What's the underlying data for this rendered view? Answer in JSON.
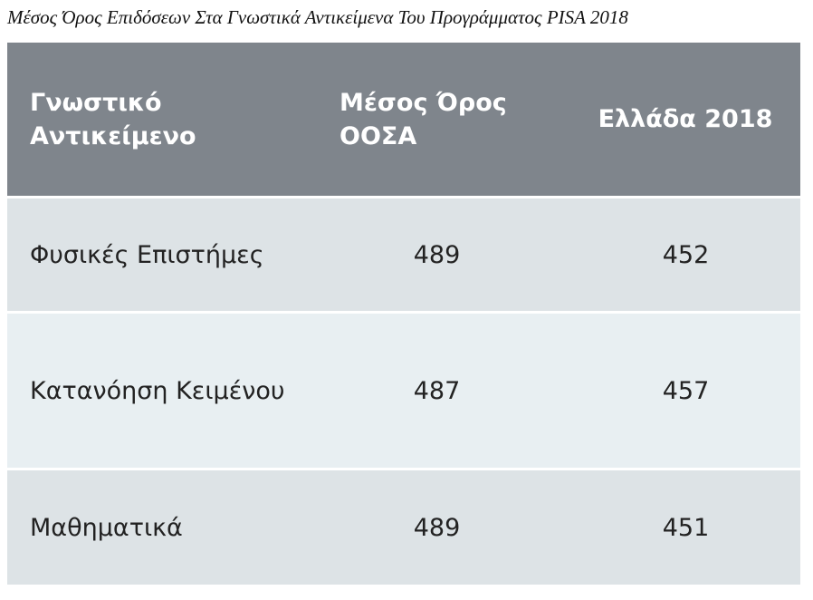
{
  "caption": "Μέσος Όρος Επιδόσεων Στα Γνωστικά Αντικείμενα Του Προγράμματος PISA 2018",
  "table": {
    "headers": [
      "Γνωστικό Αντικείμενο",
      "Μέσος Όρος ΟΟΣΑ",
      "Ελλάδα 2018"
    ],
    "rows": [
      {
        "subject": "Φυσικές Επιστήμες",
        "oecd_mean": "489",
        "greece_2018": "452"
      },
      {
        "subject": "Κατανόηση Κειμένου",
        "oecd_mean": "487",
        "greece_2018": "457"
      },
      {
        "subject": "Μαθηματικά",
        "oecd_mean": "489",
        "greece_2018": "451"
      }
    ]
  },
  "colors": {
    "header_bg": "#7f858c",
    "row_bg_dark": "#dde3e6",
    "row_bg_light": "#e8eff2",
    "header_text": "#ffffff",
    "body_text": "#222222"
  }
}
